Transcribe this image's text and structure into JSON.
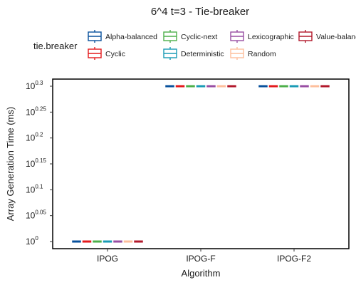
{
  "chart_data": {
    "type": "box",
    "title": "6^4 t=3 - Tie-breaker",
    "xlabel": "Algorithm",
    "ylabel": "Array Generation Time (ms)",
    "yscale": "log10",
    "ylim": [
      0,
      0.3
    ],
    "yticks": [
      {
        "base": "10",
        "exp": "0",
        "value": 0
      },
      {
        "base": "10",
        "exp": "0.05",
        "value": 0.05
      },
      {
        "base": "10",
        "exp": "0.1",
        "value": 0.1
      },
      {
        "base": "10",
        "exp": "0.15",
        "value": 0.15
      },
      {
        "base": "10",
        "exp": "0.2",
        "value": 0.2
      },
      {
        "base": "10",
        "exp": "0.25",
        "value": 0.25
      },
      {
        "base": "10",
        "exp": "0.3",
        "value": 0.3
      }
    ],
    "categories": [
      "IPOG",
      "IPOG-F",
      "IPOG-F2"
    ],
    "legend": {
      "title": "tie.breaker",
      "position": "top"
    },
    "series": [
      {
        "name": "Alpha-balanced",
        "color": "#08519c",
        "values": [
          0,
          0.3,
          0.3
        ]
      },
      {
        "name": "Cyclic",
        "color": "#e31a1c",
        "values": [
          0,
          0.3,
          0.3
        ]
      },
      {
        "name": "Cyclic-next",
        "color": "#4daf4a",
        "values": [
          0,
          0.3,
          0.3
        ]
      },
      {
        "name": "Deterministic",
        "color": "#1a9bb5",
        "values": [
          0,
          0.3,
          0.3
        ]
      },
      {
        "name": "Lexicographic",
        "color": "#984ea3",
        "values": [
          0,
          0.3,
          0.3
        ]
      },
      {
        "name": "Random",
        "color": "#fdbf9c",
        "values": [
          0,
          0.3,
          0.3
        ]
      },
      {
        "name": "Value-balanced",
        "color": "#b2182b",
        "values": [
          0,
          0.3,
          0.3
        ]
      }
    ],
    "grid": false
  }
}
